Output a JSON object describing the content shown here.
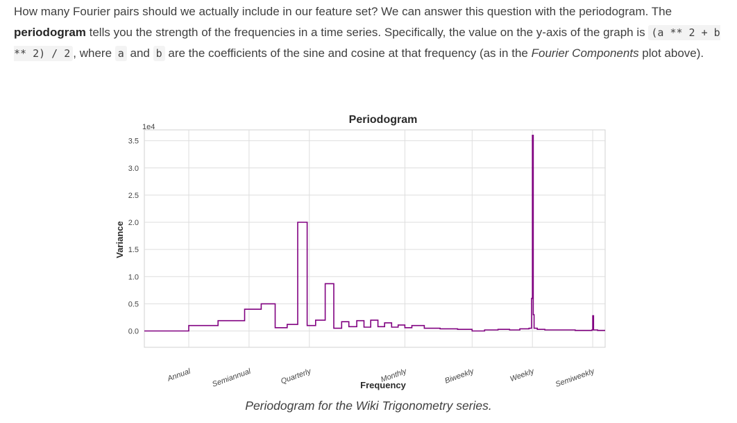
{
  "paragraph": {
    "s1": "How many Fourier pairs should we actually include in our feature set? We can answer this question with the periodogram. The ",
    "bold": "periodogram",
    "s2": " tells you the strength of the frequencies in a time series. Specifically, the value on the y-axis of the graph is ",
    "code1": "(a ** 2 + b ** 2) / 2",
    "s3": ", where ",
    "code2": "a",
    "s4": " and ",
    "code3": "b",
    "s5": " are the coefficients of the sine and cosine at that frequency (as in the ",
    "italic": "Fourier Components",
    "s6": " plot above)."
  },
  "caption": "Periodogram for the Wiki Trigonometry series.",
  "chart_data": {
    "type": "line",
    "title": "Periodogram",
    "xlabel": "Frequency",
    "ylabel": "Variance",
    "y_multiplier_label": "1e4",
    "ylim": [
      -0.3,
      3.7
    ],
    "yticks": [
      0.0,
      0.5,
      1.0,
      1.5,
      2.0,
      2.5,
      3.0,
      3.5
    ],
    "ytick_labels": [
      "0.0",
      "0.5",
      "1.0",
      "1.5",
      "2.0",
      "2.5",
      "3.0",
      "3.5"
    ],
    "x_scale": "log",
    "xlim": [
      0.6,
      120
    ],
    "xticks": [
      1,
      2,
      4,
      12,
      26,
      52,
      104
    ],
    "xtick_labels": [
      "Annual",
      "Semiannual",
      "Quarterly",
      "Monthly",
      "Biweekly",
      "Weekly",
      "Semiweekly"
    ],
    "grid": true,
    "color": "#800080",
    "series": [
      {
        "x": [
          0.6,
          1,
          1.4,
          1.9,
          2.3,
          2.7,
          3.1,
          3.5,
          3.9,
          4.3,
          4.8,
          5.3,
          5.8,
          6.3,
          6.9,
          7.5,
          8.1,
          8.8,
          9.5,
          10.3,
          11.1,
          12,
          13,
          15,
          18,
          22,
          26,
          30,
          35,
          40,
          45,
          50,
          51.5,
          52,
          52.5,
          53,
          55,
          60,
          70,
          85,
          100,
          103,
          104,
          105,
          110,
          120
        ],
        "y": [
          0.0,
          0.1,
          0.19,
          0.4,
          0.5,
          0.06,
          0.12,
          2.0,
          0.1,
          0.2,
          0.87,
          0.05,
          0.17,
          0.08,
          0.19,
          0.07,
          0.2,
          0.08,
          0.15,
          0.07,
          0.11,
          0.06,
          0.1,
          0.05,
          0.04,
          0.03,
          0.0,
          0.02,
          0.03,
          0.02,
          0.04,
          0.05,
          0.6,
          3.6,
          0.3,
          0.05,
          0.03,
          0.02,
          0.02,
          0.01,
          0.01,
          0.02,
          0.28,
          0.02,
          0.01,
          0.01
        ]
      }
    ]
  }
}
